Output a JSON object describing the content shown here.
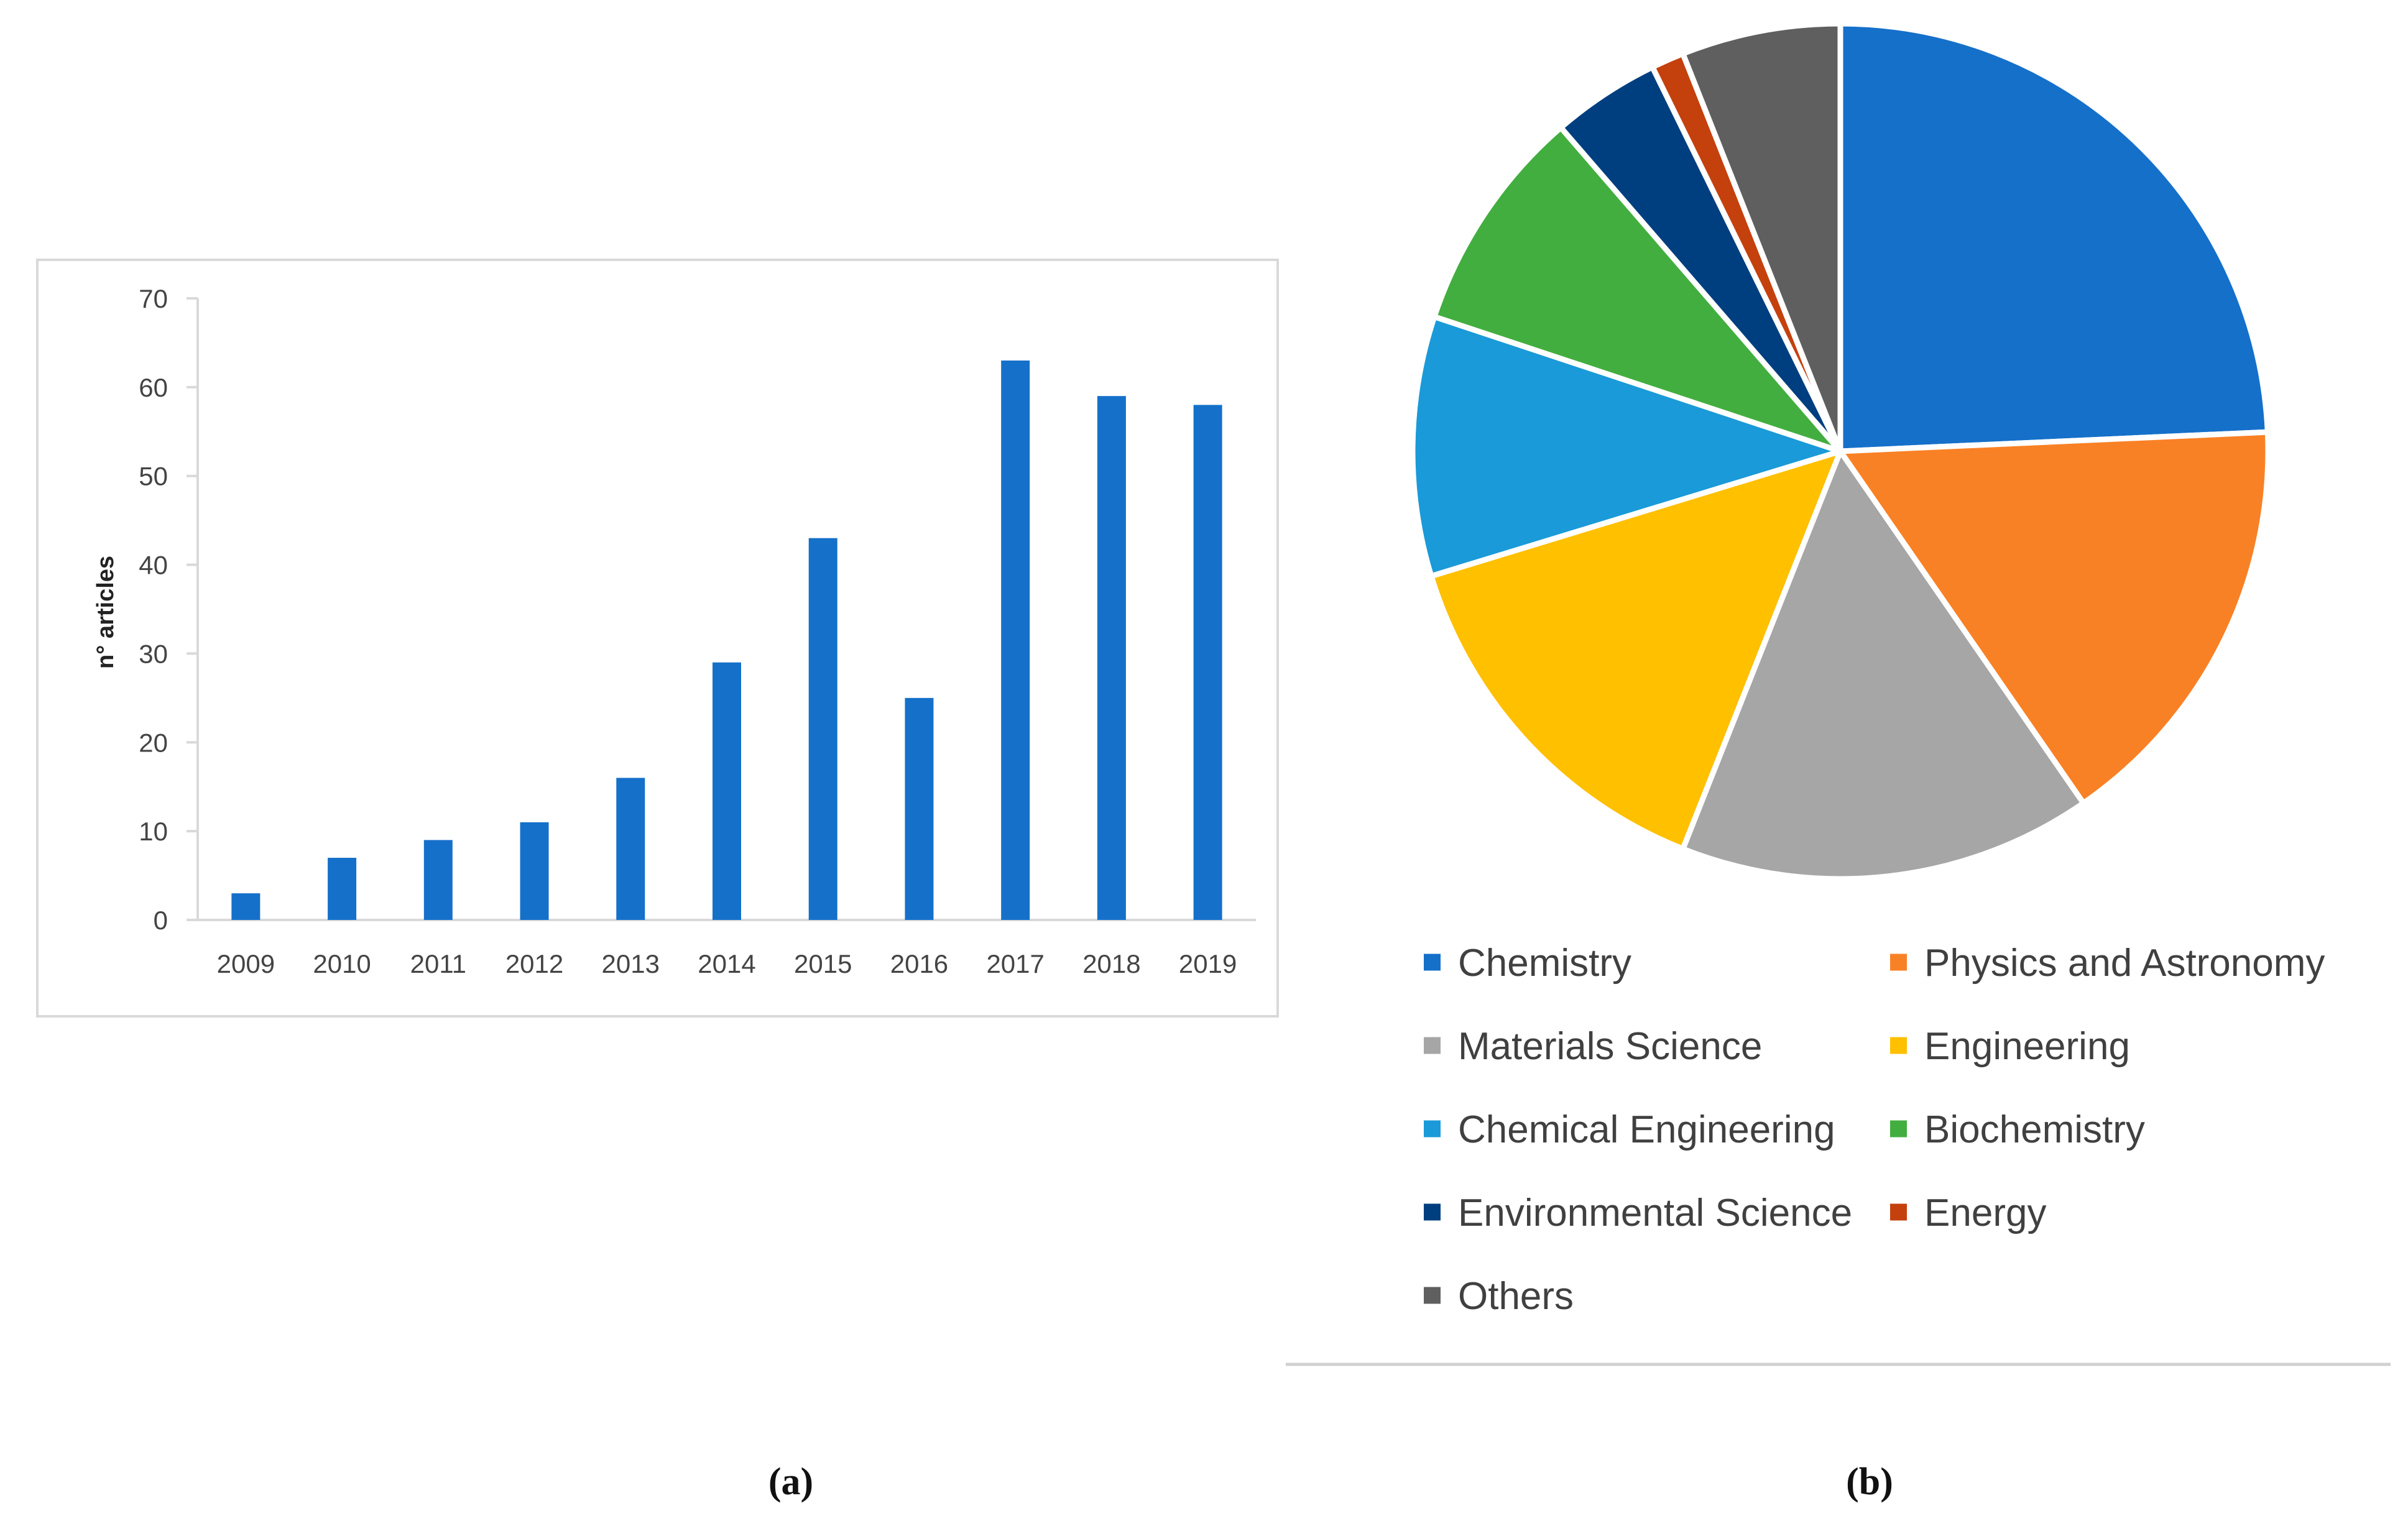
{
  "panels": {
    "a_label": "(a)",
    "b_label": "(b)"
  },
  "chart_data": [
    {
      "type": "bar",
      "title": "",
      "xlabel": "",
      "ylabel": "n° articles",
      "categories": [
        "2009",
        "2010",
        "2011",
        "2012",
        "2013",
        "2014",
        "2015",
        "2016",
        "2017",
        "2018",
        "2019"
      ],
      "values": [
        3,
        7,
        9,
        11,
        16,
        29,
        43,
        25,
        63,
        59,
        58
      ],
      "ylim": [
        0,
        70
      ],
      "yticks": [
        0,
        10,
        20,
        30,
        40,
        50,
        60,
        70
      ],
      "grid": false,
      "color": "#1570CA"
    },
    {
      "type": "pie",
      "title": "",
      "legend_position": "bottom",
      "slices": [
        {
          "label": "Chemistry",
          "value": 25.5,
          "color": "#1570CA"
        },
        {
          "label": "Physics and Astronomy",
          "value": 16.9,
          "color": "#F98125"
        },
        {
          "label": "Materials Science",
          "value": 16.4,
          "color": "#A6A6A6"
        },
        {
          "label": "Engineering",
          "value": 15.0,
          "color": "#FFC000"
        },
        {
          "label": "Chemical Engineering",
          "value": 10.3,
          "color": "#1A9AD8"
        },
        {
          "label": "Biochemistry",
          "value": 9.0,
          "color": "#42AE3F"
        },
        {
          "label": "Environmental Science",
          "value": 4.3,
          "color": "#003F7F"
        },
        {
          "label": "Energy",
          "value": 1.3,
          "color": "#C4410E"
        },
        {
          "label": "Others",
          "value": 6.3,
          "color": "#5F5F5F"
        }
      ]
    }
  ]
}
